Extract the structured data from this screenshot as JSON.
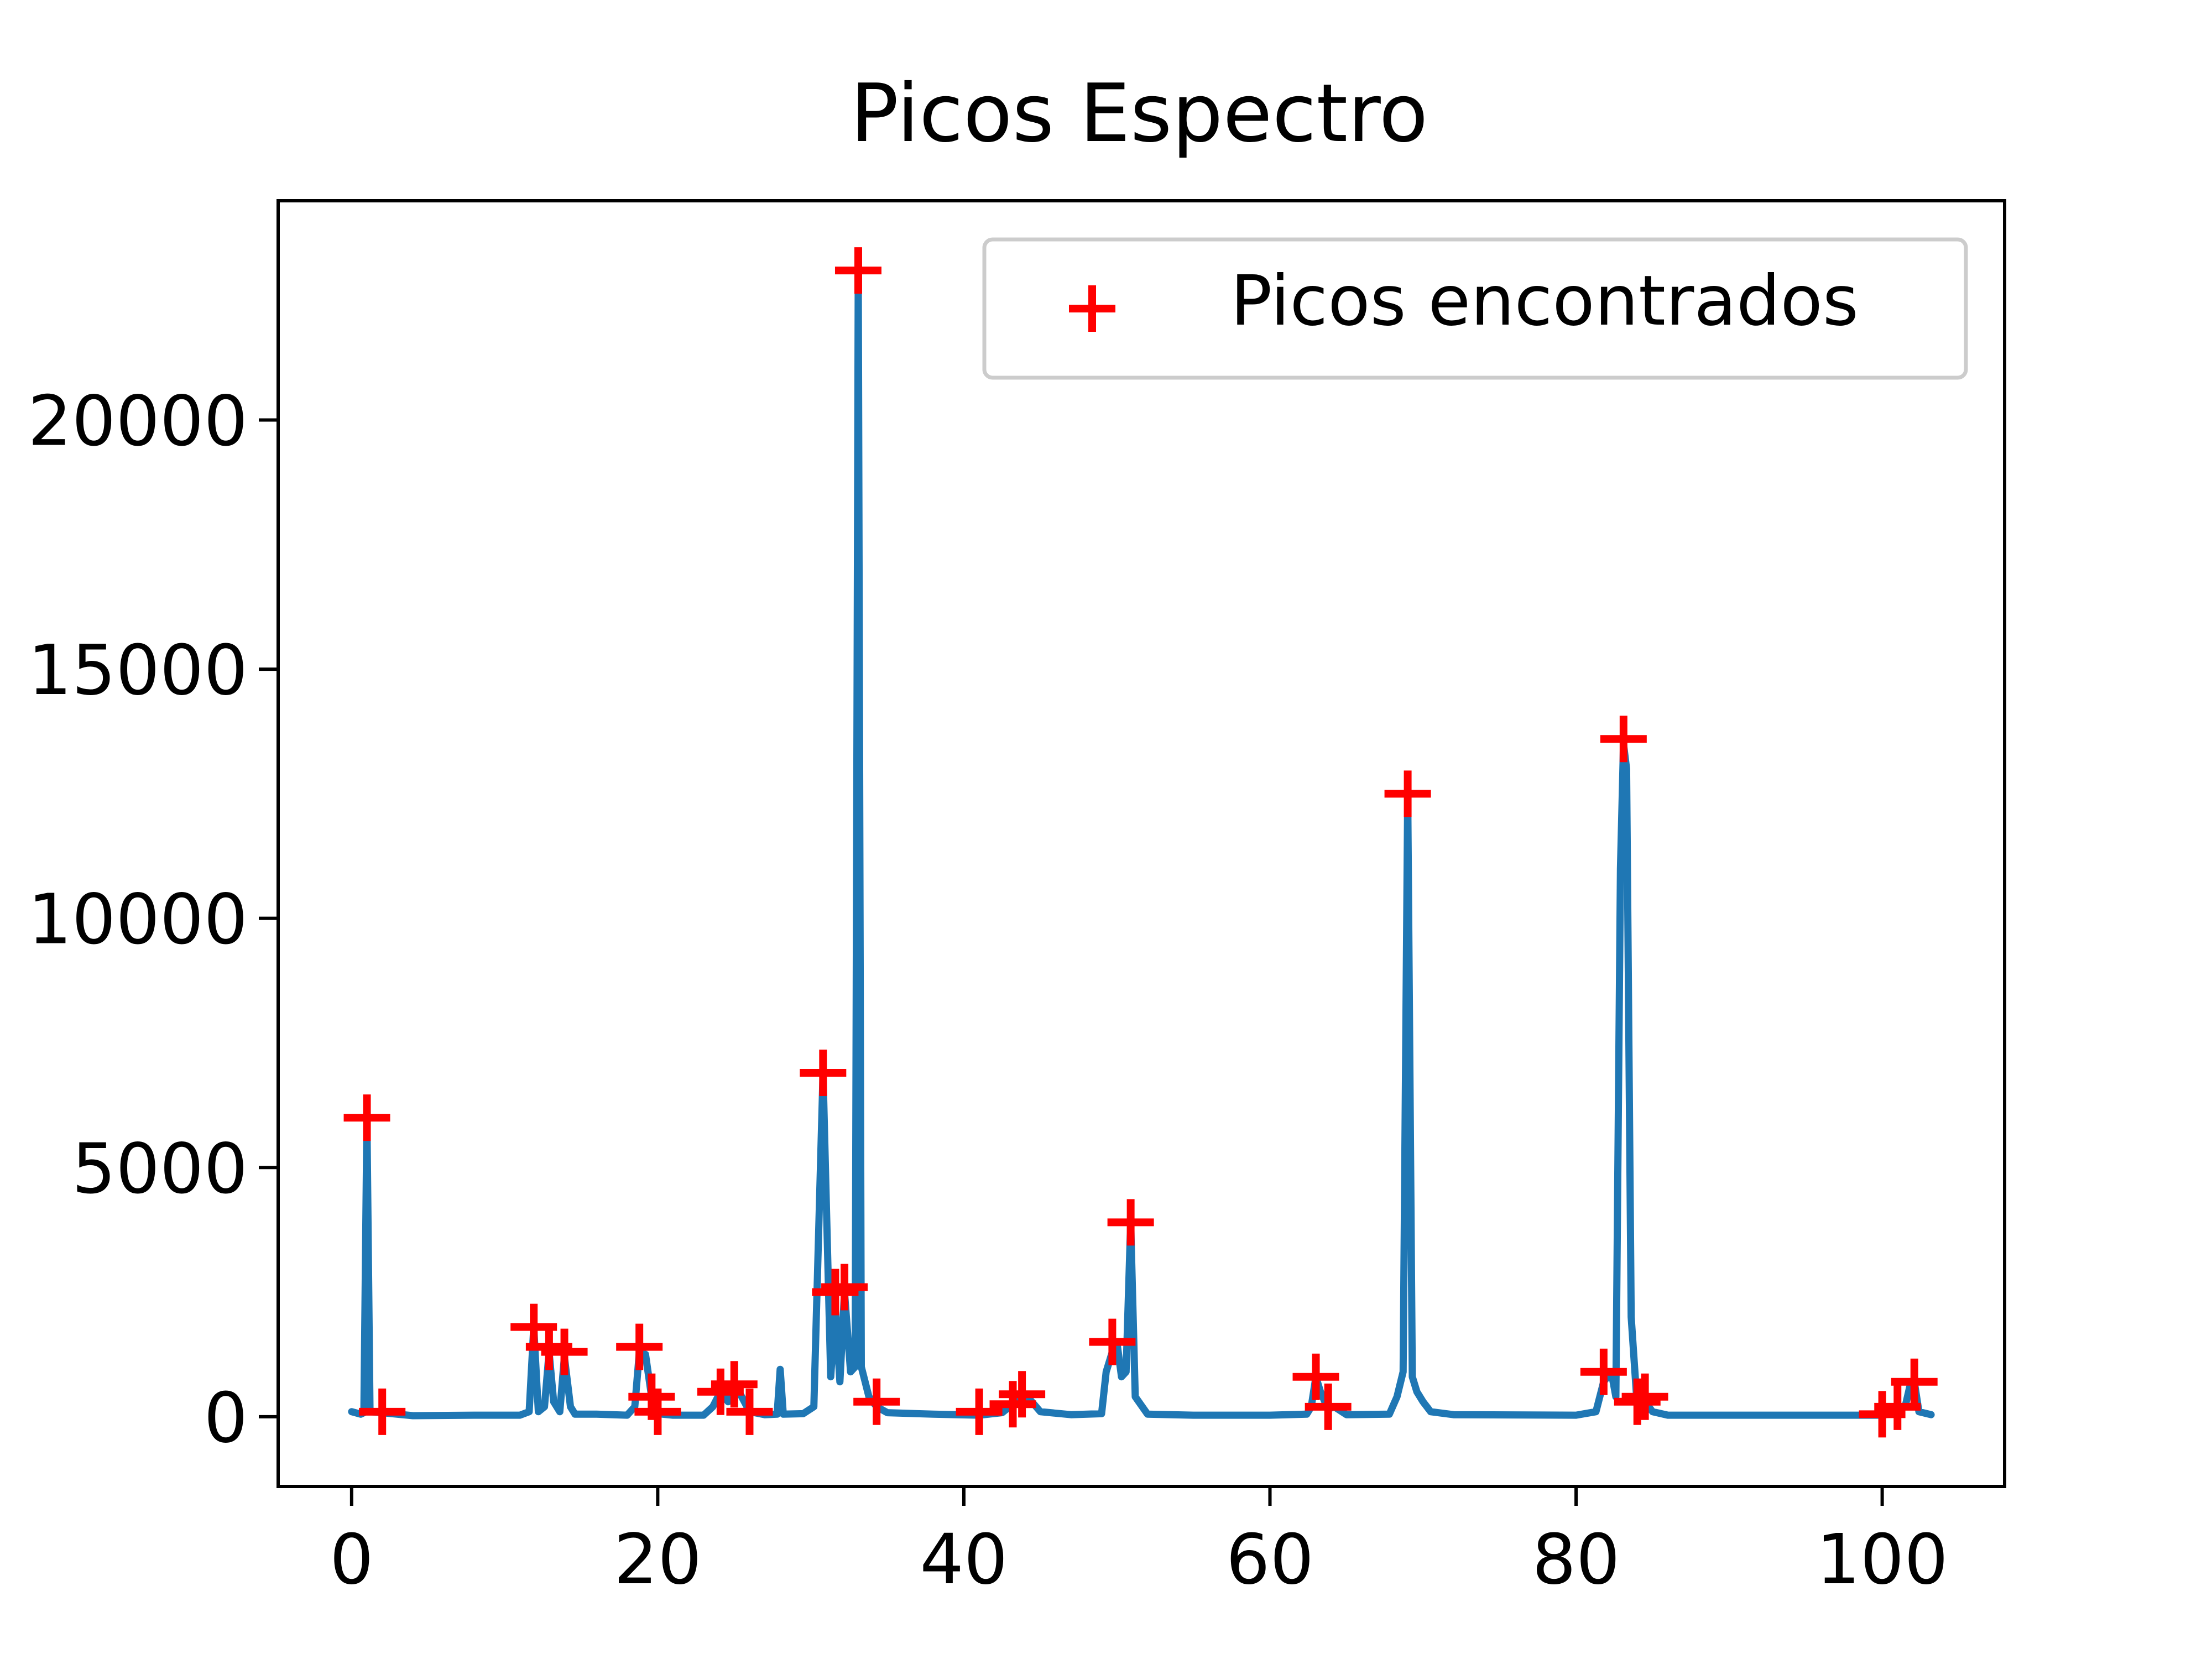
{
  "chart_data": {
    "type": "line",
    "title": "Picos Espectro",
    "xlabel": "",
    "ylabel": "",
    "xlim": [
      -4.8,
      108
    ],
    "ylim": [
      -1400,
      24400
    ],
    "xticks": [
      0,
      20,
      40,
      60,
      80,
      100
    ],
    "yticks": [
      0,
      5000,
      10000,
      15000,
      20000
    ],
    "xtick_labels": [
      "0",
      "20",
      "40",
      "60",
      "80",
      "100"
    ],
    "ytick_labels": [
      "0",
      "5000",
      "10000",
      "15000",
      "20000"
    ],
    "grid": false,
    "legend": {
      "position": "top-right",
      "entries": [
        "Picos encontrados"
      ]
    },
    "series": [
      {
        "kind": "line",
        "color": "#1f77b4",
        "points": [
          [
            0,
            100
          ],
          [
            0.6,
            50
          ],
          [
            0.8,
            80
          ],
          [
            1.0,
            6000
          ],
          [
            1.2,
            100
          ],
          [
            2.0,
            80
          ],
          [
            4,
            20
          ],
          [
            8,
            30
          ],
          [
            11,
            30
          ],
          [
            11.6,
            100
          ],
          [
            11.9,
            1800
          ],
          [
            12.2,
            100
          ],
          [
            12.6,
            200
          ],
          [
            12.9,
            1300
          ],
          [
            13.2,
            300
          ],
          [
            13.6,
            100
          ],
          [
            13.9,
            1200
          ],
          [
            14.3,
            200
          ],
          [
            14.6,
            50
          ],
          [
            16,
            50
          ],
          [
            18,
            30
          ],
          [
            18.5,
            200
          ],
          [
            18.8,
            1300
          ],
          [
            19.2,
            1250
          ],
          [
            19.6,
            400
          ],
          [
            20,
            60
          ],
          [
            21,
            30
          ],
          [
            23,
            30
          ],
          [
            23.6,
            200
          ],
          [
            24.1,
            500
          ],
          [
            24.6,
            300
          ],
          [
            25.0,
            650
          ],
          [
            25.4,
            450
          ],
          [
            26,
            100
          ],
          [
            27,
            40
          ],
          [
            27.8,
            50
          ],
          [
            28.0,
            950
          ],
          [
            28.2,
            50
          ],
          [
            29.5,
            60
          ],
          [
            30.2,
            200
          ],
          [
            30.8,
            6900
          ],
          [
            31.3,
            800
          ],
          [
            31.6,
            2200
          ],
          [
            31.9,
            700
          ],
          [
            32.2,
            2500
          ],
          [
            32.6,
            900
          ],
          [
            32.9,
            1000
          ],
          [
            33.1,
            23000
          ],
          [
            33.3,
            1000
          ],
          [
            33.8,
            400
          ],
          [
            34.3,
            200
          ],
          [
            35,
            80
          ],
          [
            38,
            50
          ],
          [
            41,
            30
          ],
          [
            42.5,
            80
          ],
          [
            43.2,
            250
          ],
          [
            43.8,
            450
          ],
          [
            44.3,
            350
          ],
          [
            45,
            100
          ],
          [
            47,
            40
          ],
          [
            49,
            60
          ],
          [
            49.3,
            900
          ],
          [
            49.7,
            1300
          ],
          [
            50.0,
            1500
          ],
          [
            50.3,
            800
          ],
          [
            50.6,
            900
          ],
          [
            50.9,
            3900
          ],
          [
            51.2,
            400
          ],
          [
            52,
            50
          ],
          [
            55,
            30
          ],
          [
            60,
            30
          ],
          [
            62.4,
            50
          ],
          [
            62.7,
            200
          ],
          [
            63.0,
            800
          ],
          [
            63.3,
            500
          ],
          [
            63.8,
            150
          ],
          [
            64.2,
            200
          ],
          [
            65,
            40
          ],
          [
            67.8,
            50
          ],
          [
            68.3,
            400
          ],
          [
            68.7,
            900
          ],
          [
            69.0,
            12500
          ],
          [
            69.3,
            800
          ],
          [
            69.6,
            500
          ],
          [
            70,
            300
          ],
          [
            70.5,
            100
          ],
          [
            72,
            40
          ],
          [
            80,
            30
          ],
          [
            81.3,
            100
          ],
          [
            81.8,
            700
          ],
          [
            82.3,
            900
          ],
          [
            82.6,
            400
          ],
          [
            82.9,
            11000
          ],
          [
            83.1,
            13500
          ],
          [
            83.3,
            13000
          ],
          [
            83.6,
            2000
          ],
          [
            84.0,
            200
          ],
          [
            84.5,
            300
          ],
          [
            85,
            100
          ],
          [
            86,
            30
          ],
          [
            95,
            30
          ],
          [
            100,
            30
          ],
          [
            100.5,
            50
          ],
          [
            101,
            150
          ],
          [
            101.5,
            200
          ],
          [
            101.8,
            600
          ],
          [
            102.1,
            700
          ],
          [
            102.4,
            100
          ],
          [
            103.2,
            40
          ]
        ]
      },
      {
        "kind": "scatter",
        "name": "Picos encontrados",
        "color": "#ff0000",
        "marker": "+",
        "points": [
          [
            1.0,
            6000
          ],
          [
            2.0,
            100
          ],
          [
            11.9,
            1800
          ],
          [
            12.9,
            1400
          ],
          [
            13.9,
            1300
          ],
          [
            18.8,
            1400
          ],
          [
            19.6,
            400
          ],
          [
            20.0,
            100
          ],
          [
            24.1,
            500
          ],
          [
            25.0,
            650
          ],
          [
            26.0,
            100
          ],
          [
            30.8,
            6900
          ],
          [
            31.6,
            2500
          ],
          [
            32.2,
            2600
          ],
          [
            33.1,
            23000
          ],
          [
            34.3,
            300
          ],
          [
            41.0,
            100
          ],
          [
            43.2,
            250
          ],
          [
            43.8,
            450
          ],
          [
            49.7,
            1500
          ],
          [
            50.9,
            3900
          ],
          [
            63.0,
            800
          ],
          [
            63.8,
            200
          ],
          [
            69.0,
            12500
          ],
          [
            81.8,
            900
          ],
          [
            83.1,
            13600
          ],
          [
            84.0,
            300
          ],
          [
            84.5,
            400
          ],
          [
            100.0,
            50
          ],
          [
            101.0,
            200
          ],
          [
            102.1,
            700
          ]
        ]
      }
    ]
  }
}
